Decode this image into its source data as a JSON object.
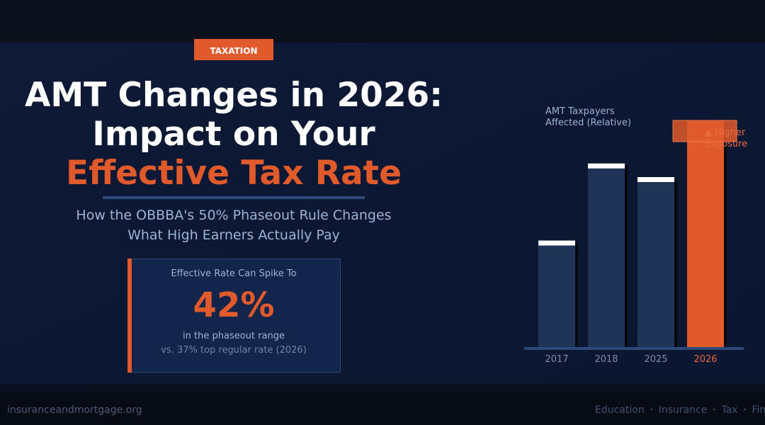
{
  "header": {
    "tag": "TAXATION",
    "title_lines": [
      "AMT Changes in 2026:",
      "Impact on Your",
      "Effective Tax Rate"
    ],
    "subtitle_lines": [
      "How the OBBBA's 50% Phaseout Rule Changes",
      "What High Earners Actually Pay"
    ]
  },
  "card": {
    "caption": "Effective Rate Can Spike To",
    "figure": "42%",
    "note": "in the phaseout range",
    "comparison": "vs. 37% top regular rate  (2026)"
  },
  "chart_data": {
    "type": "bar",
    "title_lines": [
      "AMT Taxpayers",
      "Affected (Relative)"
    ],
    "categories": [
      "2017",
      "2018",
      "2025",
      "2026"
    ],
    "values": [
      47,
      81,
      75,
      100
    ],
    "colors": [
      "#1e3558",
      "#1e3558",
      "#1e3558",
      "#e05a2b"
    ],
    "label_colors": [
      "#7e8ea8",
      "#7e8ea8",
      "#7e8ea8",
      "#e86a40"
    ],
    "caps": [
      true,
      true,
      true,
      false
    ],
    "cap_color": "#ffffff",
    "ylim": [
      0,
      100
    ],
    "annotation_lines": [
      "▲ Higher",
      "Exposure"
    ]
  },
  "footer": {
    "site": "insuranceandmortgage.org",
    "nav": [
      "Education",
      "Insurance",
      "Tax",
      "Finance"
    ]
  }
}
